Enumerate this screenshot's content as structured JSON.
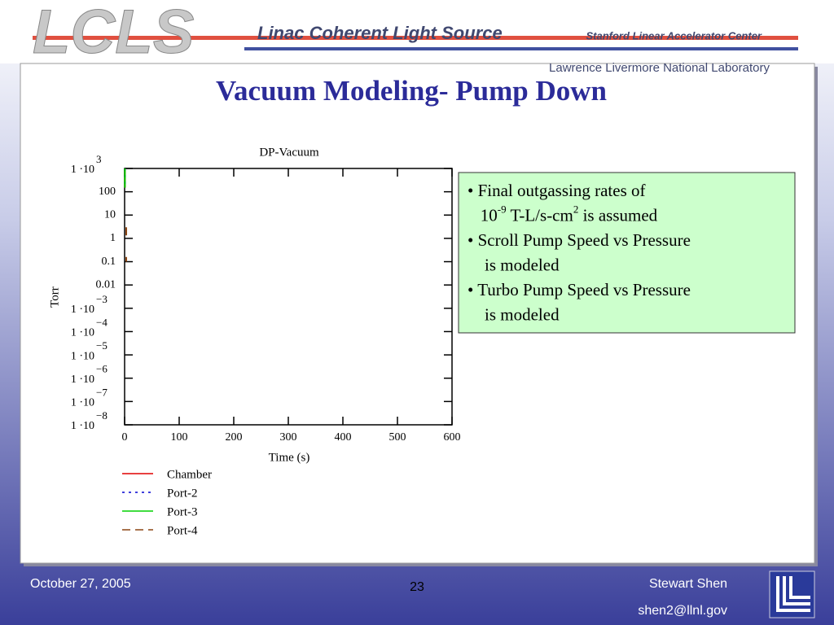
{
  "header": {
    "logo": "LCLS",
    "project": "Linac Coherent Light Source",
    "lab1": "Stanford Linear Accelerator Center",
    "lab2": "Lawrence Livermore National Laboratory"
  },
  "slide_title": "Vacuum Modeling- Pump Down",
  "chart_data": {
    "type": "line",
    "title": "DP-Vacuum",
    "x_label": "Time (s)",
    "y_label": "Torr",
    "log_y": true,
    "grid": false,
    "xlim": [
      0,
      600
    ],
    "xticks": [
      0,
      100,
      200,
      300,
      400,
      500,
      600
    ],
    "ylim": [
      1e-08,
      1000
    ],
    "yticks": [
      {
        "value": 1000,
        "label": "1 ·10",
        "exponent": "3"
      },
      100,
      10,
      1,
      0.1,
      0.01,
      {
        "value": 0.001,
        "label": "1 ·10",
        "exponent": "−3"
      },
      {
        "value": 0.0001,
        "label": "1 ·10",
        "exponent": "−4"
      },
      {
        "value": 1e-05,
        "label": "1 ·10",
        "exponent": "−5"
      },
      {
        "value": 1e-06,
        "label": "1 ·10",
        "exponent": "−6"
      },
      {
        "value": 1e-07,
        "label": "1 ·10",
        "exponent": "−7"
      },
      {
        "value": 1e-08,
        "label": "1 ·10",
        "exponent": "−8"
      }
    ],
    "series": [
      {
        "name": "Chamber",
        "color": "#e00000",
        "dash": "none",
        "x": [
          0.5,
          0.5
        ],
        "values": [
          1000,
          150
        ]
      },
      {
        "name": "Port-2",
        "color": "#0000d0",
        "dash": "3,5",
        "x": [
          0.5,
          0.5
        ],
        "values": [
          1000,
          150
        ]
      },
      {
        "name": "Port-3",
        "color": "#00d000",
        "dash": "none",
        "x": [
          0.5,
          0.5
        ],
        "values": [
          1000,
          150
        ]
      },
      {
        "name": "Port-4",
        "color": "#8b4513",
        "dash": "10,6",
        "x": [
          3,
          3,
          3,
          3,
          3
        ],
        "values": [
          3,
          0.9,
          null,
          0.16,
          0.1
        ]
      }
    ]
  },
  "notes": [
    [
      {
        "t": "• Final outgassing rates of"
      }
    ],
    [
      {
        "t": "   10"
      },
      {
        "t": "-9",
        "sup": true
      },
      {
        "t": " T-L/s-cm"
      },
      {
        "t": "2",
        "sup": true
      },
      {
        "t": " is assumed"
      }
    ],
    [
      {
        "t": "• Scroll Pump Speed vs Pressure"
      }
    ],
    [
      {
        "t": "    is modeled"
      }
    ],
    [
      {
        "t": "• Turbo Pump Speed vs Pressure"
      }
    ],
    [
      {
        "t": "    is modeled"
      }
    ]
  ],
  "footer": {
    "date": "October 27,  2005",
    "page": "23",
    "author": "Stewart Shen",
    "email": "shen2@llnl.gov"
  }
}
